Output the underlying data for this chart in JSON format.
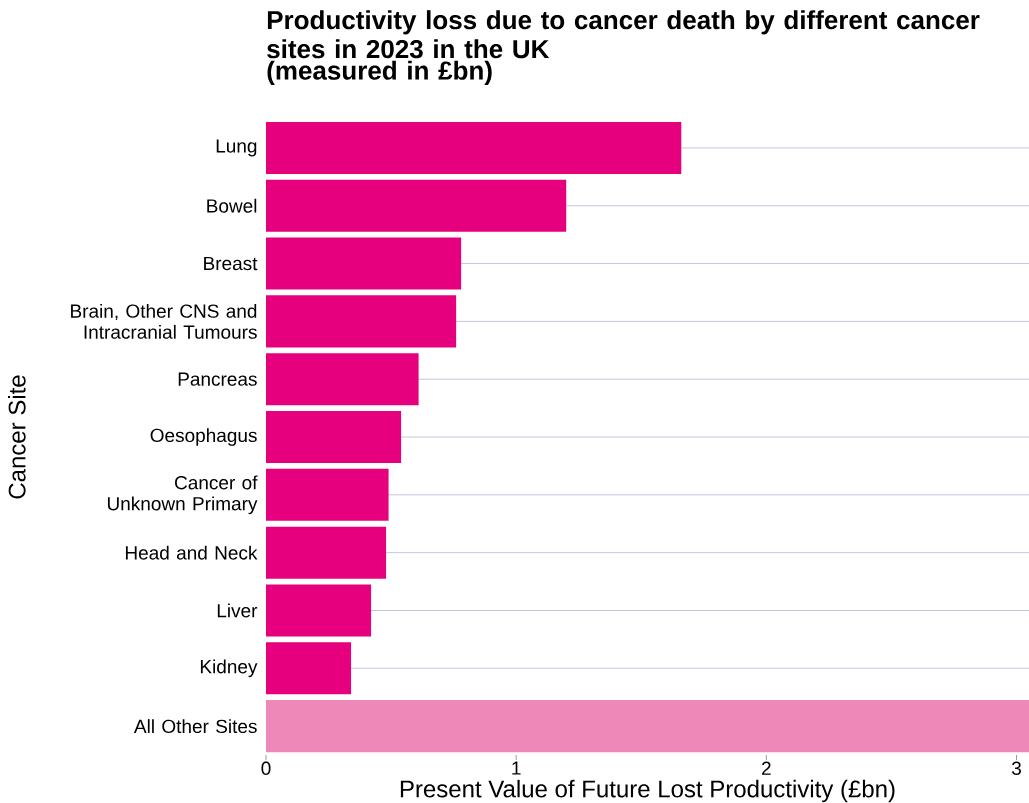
{
  "chart_data": {
    "type": "bar",
    "orientation": "horizontal",
    "title": "Productivity loss due to cancer death by different cancer sites in 2023 in the UK",
    "subtitle": "(measured in £bn)",
    "xlabel": "Present Value of Future Lost Productivity (£bn)",
    "ylabel": "Cancer Site",
    "categories": [
      "Lung",
      "Bowel",
      "Breast",
      "Brain, Other CNS and Intracranial Tumours",
      "Pancreas",
      "Oesophagus",
      "Cancer of Unknown Primary",
      "Head and Neck",
      "Liver",
      "Kidney",
      "All Other Sites"
    ],
    "values": [
      1.66,
      1.2,
      0.78,
      0.76,
      0.61,
      0.54,
      0.49,
      0.48,
      0.42,
      0.34,
      3.05
    ],
    "colors": [
      "#e6007e",
      "#e6007e",
      "#e6007e",
      "#e6007e",
      "#e6007e",
      "#e6007e",
      "#e6007e",
      "#e6007e",
      "#e6007e",
      "#e6007e",
      "#ee88b8"
    ],
    "xlim": [
      0,
      3.05
    ],
    "xticks": [
      0,
      1,
      2,
      3
    ],
    "grid": "y"
  }
}
